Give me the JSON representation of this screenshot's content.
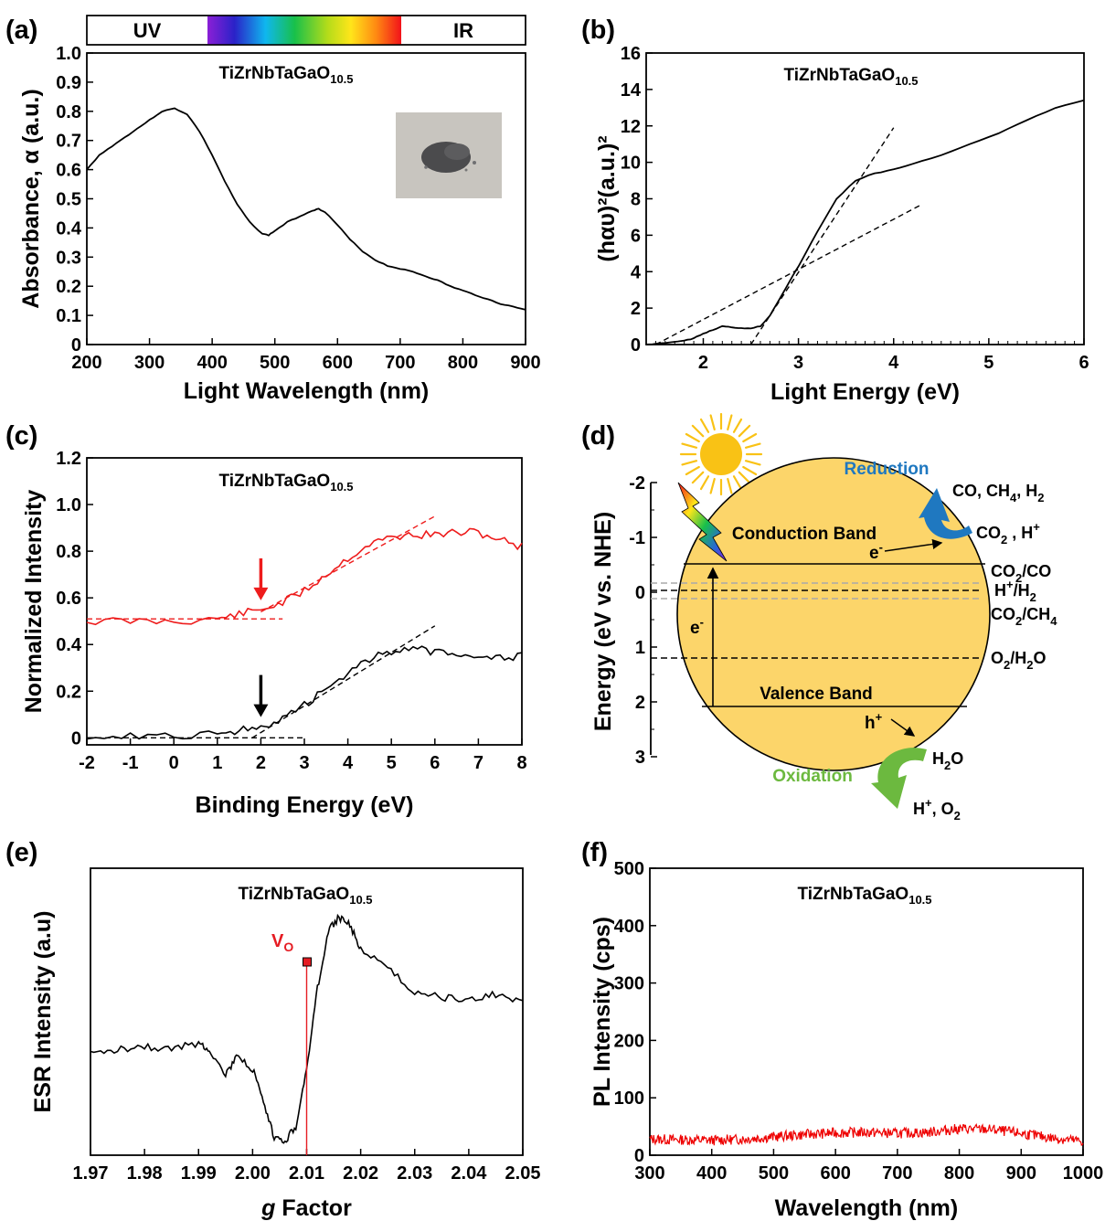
{
  "panels": {
    "a": {
      "label": "(a)",
      "bar_uv": "UV",
      "bar_ir": "IR"
    },
    "b": {
      "label": "(b)"
    },
    "c": {
      "label": "(c)"
    },
    "d": {
      "label": "(d)",
      "ylabel": "Energy (eV vs. NHE)",
      "yticks": [
        "-2",
        "-1",
        "0",
        "1",
        "2",
        "3"
      ],
      "conduction_band": "Conduction Band",
      "valence_band": "Valence Band",
      "reduction": "Reduction",
      "oxidation": "Oxidation",
      "electron": "e",
      "electron_sup": "-",
      "hole": "h",
      "hole_sup": "+",
      "products_red": "CO, CH",
      "products_red_rest": ", H",
      "reactants_red": "CO",
      "reactants_red_rest": " , H",
      "h2o": "H",
      "h2o_rest": "O",
      "products_ox": "H",
      "products_ox_rest": ", O",
      "couple_co2_co": "CO",
      "couple_co2_co_rest": "/CO",
      "couple_h_h2": "H",
      "couple_h_h2_rest": "/H",
      "couple_co2_ch4": "CO",
      "couple_co2_ch4_rest": "/CH",
      "couple_o2_h2o": "O",
      "couple_o2_h2o_rest": "/H",
      "couple_o2_h2o_end": "O",
      "sub2": "2",
      "sub4": "4",
      "sup_plus": "+",
      "colors": {
        "sphere": "#fcd56a",
        "sun": "#f9c215",
        "reduction": "#1f78c0",
        "oxidation": "#6cb93f"
      }
    },
    "e": {
      "label": "(e)",
      "vo_label": "V",
      "vo_sub": "O"
    },
    "f": {
      "label": "(f)"
    }
  },
  "chart_data": [
    {
      "id": "a",
      "type": "line",
      "title": "TiZrNbTaGaO",
      "title_sub": "10.5",
      "xlabel": "Light Wavelength (nm)",
      "ylabel": "Absorbance, α (a.u.)",
      "xlim": [
        200,
        900
      ],
      "ylim": [
        0,
        1.0
      ],
      "xticks": [
        200,
        300,
        400,
        500,
        600,
        700,
        800,
        900
      ],
      "yticks": [
        0,
        0.1,
        0.2,
        0.3,
        0.4,
        0.5,
        0.6,
        0.7,
        0.8,
        0.9,
        1.0
      ],
      "ytick_labels": [
        "0",
        "0.1",
        "0.2",
        "0.3",
        "0.4",
        "0.5",
        "0.6",
        "0.7",
        "0.8",
        "0.9",
        "1.0"
      ],
      "color": "#000000",
      "x": [
        200,
        220,
        240,
        260,
        280,
        300,
        320,
        340,
        360,
        380,
        400,
        420,
        440,
        460,
        480,
        490,
        500,
        520,
        540,
        560,
        570,
        580,
        600,
        620,
        640,
        660,
        680,
        700,
        720,
        740,
        760,
        780,
        800,
        820,
        840,
        860,
        880,
        900
      ],
      "y": [
        0.6,
        0.65,
        0.68,
        0.71,
        0.74,
        0.77,
        0.8,
        0.81,
        0.79,
        0.73,
        0.65,
        0.56,
        0.48,
        0.42,
        0.38,
        0.375,
        0.39,
        0.42,
        0.44,
        0.46,
        0.465,
        0.455,
        0.41,
        0.36,
        0.32,
        0.29,
        0.27,
        0.26,
        0.25,
        0.235,
        0.22,
        0.2,
        0.185,
        0.17,
        0.155,
        0.14,
        0.13,
        0.12
      ]
    },
    {
      "id": "b",
      "type": "line",
      "title": "TiZrNbTaGaO",
      "title_sub": "10.5",
      "xlabel": "Light Energy (eV)",
      "ylabel": "(hαυ)²(a.u.)²",
      "xlim": [
        1.4,
        6
      ],
      "ylim": [
        0,
        16
      ],
      "xticks": [
        2,
        3,
        4,
        5,
        6
      ],
      "yticks": [
        0,
        2,
        4,
        6,
        8,
        10,
        12,
        14,
        16
      ],
      "color": "#000000",
      "x": [
        1.4,
        1.6,
        1.8,
        1.9,
        2.0,
        2.1,
        2.2,
        2.3,
        2.4,
        2.5,
        2.6,
        2.7,
        2.8,
        2.9,
        3.0,
        3.2,
        3.4,
        3.6,
        3.8,
        4.0,
        4.2,
        4.5,
        4.8,
        5.1,
        5.4,
        5.7,
        6.0
      ],
      "y": [
        0.0,
        0.1,
        0.2,
        0.35,
        0.6,
        0.8,
        1.0,
        0.95,
        0.9,
        0.9,
        1.0,
        1.6,
        2.5,
        3.4,
        4.3,
        6.2,
        8.0,
        9.0,
        9.4,
        9.6,
        9.9,
        10.4,
        11.0,
        11.6,
        12.3,
        13.0,
        13.4
      ],
      "fit_lines": [
        {
          "x": [
            2.5,
            4.0
          ],
          "y": [
            0.0,
            11.9
          ]
        },
        {
          "x": [
            1.5,
            4.3
          ],
          "y": [
            0.0,
            7.7
          ]
        }
      ]
    },
    {
      "id": "c",
      "type": "line",
      "title": "TiZrNbTaGaO",
      "title_sub": "10.5",
      "xlabel": "Binding Energy (eV)",
      "ylabel": "Normalized Intensity",
      "xlim": [
        -2,
        8
      ],
      "ylim": [
        -0.03,
        1.2
      ],
      "xticks": [
        -2,
        -1,
        0,
        1,
        2,
        3,
        4,
        5,
        6,
        7,
        8
      ],
      "yticks": [
        0,
        0.2,
        0.4,
        0.6,
        0.8,
        1.0,
        1.2
      ],
      "ytick_labels": [
        "0",
        "0.2",
        "0.4",
        "0.6",
        "0.8",
        "1.0",
        "1.2"
      ],
      "series": [
        {
          "color": "#ee1c1c",
          "x": [
            -2,
            -1,
            0,
            1,
            1.5,
            2.0,
            2.5,
            3.0,
            3.5,
            4.0,
            4.5,
            5.0,
            5.5,
            6.0,
            6.5,
            7.0,
            7.5,
            8.0
          ],
          "y": [
            0.5,
            0.5,
            0.5,
            0.51,
            0.53,
            0.55,
            0.58,
            0.63,
            0.7,
            0.77,
            0.83,
            0.86,
            0.87,
            0.87,
            0.88,
            0.88,
            0.85,
            0.82
          ],
          "fit_lines": [
            {
              "x": [
                -2,
                2.5
              ],
              "y": [
                0.51,
                0.51
              ]
            },
            {
              "x": [
                2.0,
                6.0
              ],
              "y": [
                0.54,
                0.95
              ]
            }
          ],
          "arrow_x": 2.0
        },
        {
          "color": "#000000",
          "x": [
            -2,
            -1,
            0,
            1,
            1.5,
            2.0,
            2.5,
            3.0,
            3.5,
            4.0,
            4.5,
            5.0,
            5.5,
            6.0,
            6.5,
            7.0,
            7.5,
            8.0
          ],
          "y": [
            0.01,
            0.01,
            0.01,
            0.02,
            0.03,
            0.05,
            0.08,
            0.14,
            0.21,
            0.28,
            0.34,
            0.37,
            0.38,
            0.37,
            0.36,
            0.36,
            0.34,
            0.35
          ],
          "fit_lines": [
            {
              "x": [
                -2,
                3.0
              ],
              "y": [
                0.0,
                0.0
              ]
            },
            {
              "x": [
                1.8,
                6.0
              ],
              "y": [
                0.0,
                0.48
              ]
            }
          ],
          "arrow_x": 2.0
        }
      ]
    },
    {
      "id": "e",
      "type": "line",
      "title": "TiZrNbTaGaO",
      "title_sub": "10.5",
      "xlabel": "g Factor",
      "xlabel_italic": "g",
      "xlabel_rest": " Factor",
      "ylabel": "ESR Intensity (a.u)",
      "xlim": [
        1.97,
        2.05
      ],
      "xticks": [
        1.97,
        1.98,
        1.99,
        2.0,
        2.01,
        2.02,
        2.03,
        2.04,
        2.05
      ],
      "xtick_labels": [
        "1.97",
        "1.98",
        "1.99",
        "2.00",
        "2.01",
        "2.02",
        "2.03",
        "2.04",
        "2.05"
      ],
      "ylim": [
        0,
        1
      ],
      "vline_x": 2.01,
      "vline_color": "#e51c23",
      "color": "#000000",
      "x": [
        1.97,
        1.975,
        1.98,
        1.985,
        1.99,
        1.992,
        1.995,
        1.997,
        2.0,
        2.002,
        2.004,
        2.006,
        2.008,
        2.01,
        2.012,
        2.014,
        2.016,
        2.018,
        2.02,
        2.025,
        2.03,
        2.035,
        2.04,
        2.045,
        2.05
      ],
      "y": [
        0.35,
        0.37,
        0.38,
        0.37,
        0.39,
        0.37,
        0.28,
        0.34,
        0.3,
        0.18,
        0.06,
        0.05,
        0.1,
        0.3,
        0.58,
        0.78,
        0.83,
        0.8,
        0.72,
        0.65,
        0.57,
        0.55,
        0.54,
        0.56,
        0.54
      ]
    },
    {
      "id": "f",
      "type": "line",
      "title": "TiZrNbTaGaO",
      "title_sub": "10.5",
      "xlabel": "Wavelength (nm)",
      "ylabel": "PL Intensity (cps)",
      "xlim": [
        300,
        1000
      ],
      "ylim": [
        0,
        500
      ],
      "xticks": [
        300,
        400,
        500,
        600,
        700,
        800,
        900,
        1000
      ],
      "yticks": [
        0,
        100,
        200,
        300,
        400,
        500
      ],
      "color": "#ee0000",
      "x": [
        300,
        350,
        400,
        450,
        500,
        550,
        600,
        650,
        700,
        750,
        800,
        850,
        900,
        950,
        1000
      ],
      "y": [
        28,
        27,
        26,
        28,
        32,
        36,
        39,
        40,
        38,
        40,
        46,
        45,
        38,
        30,
        24
      ],
      "noise": 9
    }
  ]
}
